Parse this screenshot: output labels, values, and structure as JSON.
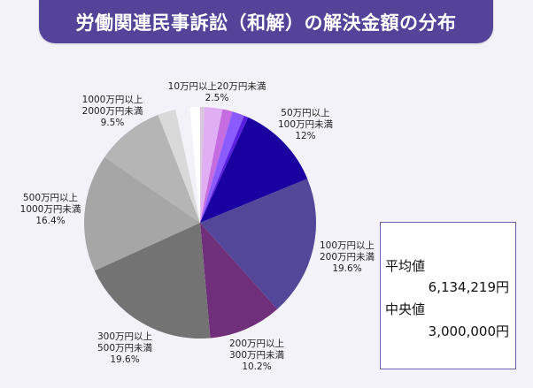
{
  "title": "労働関連民事訴訟（和解）の解決金額の分布",
  "stats": {
    "mean_label": "平均値",
    "mean_value": "6,134,219円",
    "median_label": "中央値",
    "median_value": "3,000,000円"
  },
  "chart_data": {
    "type": "pie",
    "start": "12 o'clock",
    "direction": "clockwise",
    "slices": [
      {
        "value": 0.6,
        "color": "#d8c6dc"
      },
      {
        "name": "10万円以上20万円未満",
        "value": 2.5,
        "label_lines": [
          "10万円以上20万円未満",
          "2.5%"
        ],
        "color": "#e0aef2"
      },
      {
        "value": 1.4,
        "color": "#c46ce0"
      },
      {
        "value": 1.7,
        "color": "#8a5cff"
      },
      {
        "value": 0.6,
        "color": "#5a1ee0"
      },
      {
        "name": "50万円以上100万円未満",
        "value": 12,
        "label_lines": [
          "50万円以上",
          "100万円未満",
          "12%"
        ],
        "color": "#1a00a0"
      },
      {
        "name": "100万円以上200万円未満",
        "value": 19.6,
        "label_lines": [
          "100万円以上",
          "200万円未満",
          "19.6%"
        ],
        "color": "#53479a"
      },
      {
        "name": "200万円以上300万円未満",
        "value": 10.2,
        "label_lines": [
          "200万円以上",
          "300万円未満",
          "10.2%"
        ],
        "color": "#6f2f7a"
      },
      {
        "name": "300万円以上500万円未満",
        "value": 19.6,
        "label_lines": [
          "300万円以上",
          "500万円未満",
          "19.6%"
        ],
        "color": "#737373"
      },
      {
        "name": "500万円以上1000万円未満",
        "value": 16.4,
        "label_lines": [
          "500万円以上",
          "1000万円未満",
          "16.4%"
        ],
        "color": "#a6a6a6"
      },
      {
        "name": "1000万円以上2000万円未満",
        "value": 9.5,
        "label_lines": [
          "1000万円以上",
          "2000万円未満",
          "9.5%"
        ],
        "color": "#b5b5b5"
      },
      {
        "value": 2.5,
        "color": "#d9d9d9"
      },
      {
        "value": 2.0,
        "color": "#f2f2f8"
      },
      {
        "value": 1.4,
        "color": "#ffffff"
      }
    ]
  }
}
